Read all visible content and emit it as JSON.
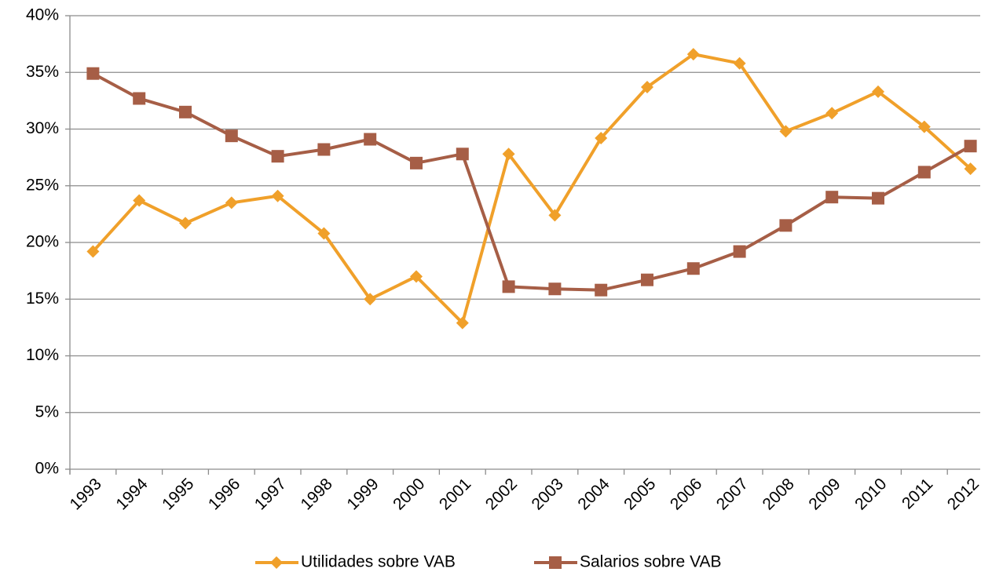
{
  "chart_data": {
    "type": "line",
    "categories": [
      "1993",
      "1994",
      "1995",
      "1996",
      "1997",
      "1998",
      "1999",
      "2000",
      "2001",
      "2002",
      "2003",
      "2004",
      "2005",
      "2006",
      "2007",
      "2008",
      "2009",
      "2010",
      "2011",
      "2012"
    ],
    "series": [
      {
        "name": "Utilidades sobre VAB",
        "color": "#f0a02a",
        "marker": "diamond",
        "values": [
          19.2,
          23.7,
          21.7,
          23.5,
          24.1,
          20.8,
          15.0,
          17.0,
          12.9,
          27.8,
          22.4,
          29.2,
          33.7,
          36.6,
          35.8,
          29.8,
          31.4,
          33.3,
          30.2,
          26.5
        ]
      },
      {
        "name": "Salarios sobre VAB",
        "color": "#a65e46",
        "marker": "square",
        "values": [
          34.9,
          32.7,
          31.5,
          29.4,
          27.6,
          28.2,
          29.1,
          27.0,
          27.8,
          16.1,
          15.9,
          15.8,
          16.7,
          17.7,
          19.2,
          21.5,
          24.0,
          23.9,
          26.2,
          28.5
        ]
      }
    ],
    "ylim": [
      0,
      40
    ],
    "yticks": [
      {
        "value": 0,
        "label": "0%"
      },
      {
        "value": 5,
        "label": "5%"
      },
      {
        "value": 10,
        "label": "10%"
      },
      {
        "value": 15,
        "label": "15%"
      },
      {
        "value": 20,
        "label": "20%"
      },
      {
        "value": 25,
        "label": "25%"
      },
      {
        "value": 30,
        "label": "30%"
      },
      {
        "value": 35,
        "label": "35%"
      },
      {
        "value": 40,
        "label": "40%"
      }
    ],
    "grid": true,
    "legend": "bottom"
  }
}
